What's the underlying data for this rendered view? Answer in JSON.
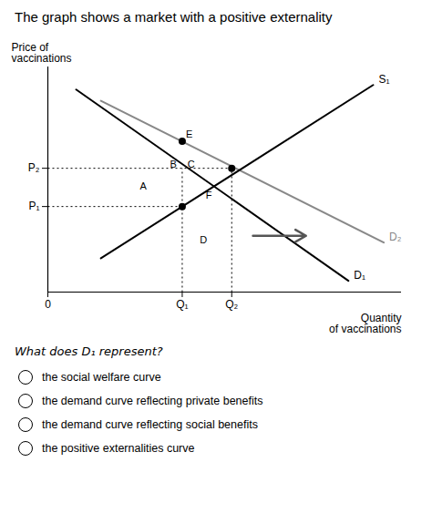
{
  "chart_data": {
    "type": "line",
    "title": "The graph shows a market with a positive externality",
    "x_label": "Quantity\nof vaccinations",
    "y_label": "Price of\nvaccinations",
    "xlim": [
      0,
      10
    ],
    "ylim": [
      0,
      10
    ],
    "xticks": [
      0,
      {
        "value": 3.8,
        "label": "Q₁"
      },
      {
        "value": 5.2,
        "label": "Q₂"
      }
    ],
    "yticks": [
      {
        "value": 3.8,
        "label": "P₁"
      },
      {
        "value": 5.5,
        "label": "P₂"
      }
    ],
    "grid": false,
    "series": [
      {
        "name": "S₁",
        "color": "black",
        "x": [
          1.5,
          9.2
        ],
        "values": [
          1.5,
          9.2
        ]
      },
      {
        "name": "D₁",
        "color": "black",
        "x": [
          0.8,
          8.5
        ],
        "values": [
          9.0,
          0.5
        ]
      },
      {
        "name": "D₂",
        "color": "#888888",
        "x": [
          1.5,
          9.5
        ],
        "values": [
          8.5,
          2.2
        ]
      }
    ],
    "dotted_lines": [
      {
        "x": [
          0,
          3.8
        ],
        "y": [
          3.8,
          3.8
        ]
      },
      {
        "x": [
          0,
          5.2
        ],
        "y": [
          5.5,
          5.5
        ]
      },
      {
        "x": [
          3.8,
          3.8
        ],
        "y": [
          0,
          5.5
        ]
      },
      {
        "x": [
          5.2,
          5.2
        ],
        "y": [
          0,
          5.5
        ]
      }
    ],
    "points": [
      {
        "x": 3.8,
        "y": 6.7
      },
      {
        "x": 3.8,
        "y": 3.8
      },
      {
        "x": 5.2,
        "y": 5.5
      }
    ],
    "annotations": [
      {
        "text": "A",
        "x": 2.7,
        "y": 4.7
      },
      {
        "text": "B",
        "x": 3.55,
        "y": 5.65
      },
      {
        "text": "C",
        "x": 4.05,
        "y": 5.65
      },
      {
        "text": "D",
        "x": 4.4,
        "y": 2.3
      },
      {
        "text": "E",
        "x": 4.0,
        "y": 7.0
      },
      {
        "text": "F",
        "x": 4.55,
        "y": 4.3
      }
    ],
    "arrow": {
      "x1": 5.8,
      "x2": 7.3,
      "y": 2.5,
      "color": "#555555"
    },
    "question": "What does D₁ represent?",
    "options": [
      "the social welfare curve",
      "the demand curve reflecting private benefits",
      "the demand curve reflecting social benefits",
      "the positive externalities curve"
    ]
  }
}
